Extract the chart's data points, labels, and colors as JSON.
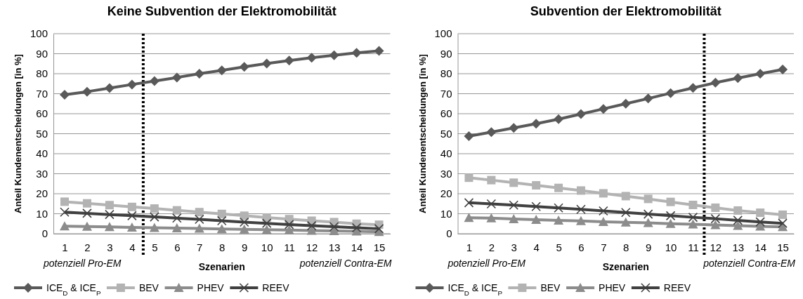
{
  "chart_data": [
    {
      "type": "line",
      "title": "Keine Subvention der Elektromobilität",
      "xlabel": "Szenarien",
      "ylabel": "Anteil Kundenentscheidungen [in %]",
      "x": [
        1,
        2,
        3,
        4,
        5,
        6,
        7,
        8,
        9,
        10,
        11,
        12,
        13,
        14,
        15
      ],
      "xlim": [
        0.5,
        15.5
      ],
      "xticks": [
        1,
        2,
        3,
        4,
        5,
        6,
        7,
        8,
        9,
        10,
        11,
        12,
        13,
        14,
        15
      ],
      "ylim": [
        0,
        100
      ],
      "yticks": [
        0,
        10,
        20,
        30,
        40,
        50,
        60,
        70,
        80,
        90,
        100
      ],
      "grid": "y",
      "legend": "bottom",
      "annotations": [
        "potenziell Pro-EM",
        "potenziell Contra-EM"
      ],
      "ref_lines": [
        {
          "axis": "x",
          "value": 4.5,
          "color": "#000000",
          "line_style": "dotted"
        }
      ],
      "series": [
        {
          "name": "ICE$_{D}$ & ICE$_{P}$",
          "color": "#595959",
          "marker": "diamond",
          "values": [
            69.5,
            71,
            72.8,
            74.6,
            76.3,
            78.1,
            80,
            81.7,
            83.4,
            85.1,
            86.6,
            88,
            89.2,
            90.4,
            91.4
          ]
        },
        {
          "name": "BEV",
          "color": "#b3b3b3",
          "marker": "square",
          "values": [
            16,
            15.2,
            14.3,
            13.4,
            12.6,
            11.7,
            10.8,
            9.9,
            9,
            8.1,
            7.3,
            6.5,
            5.8,
            5,
            4.5
          ]
        },
        {
          "name": "PHEV",
          "color": "#8c8c8c",
          "marker": "triangle",
          "values": [
            3.8,
            3.6,
            3.4,
            3.2,
            3,
            2.8,
            2.6,
            2.4,
            2.2,
            2,
            1.8,
            1.6,
            1.4,
            1.2,
            1
          ]
        },
        {
          "name": "REEV",
          "color": "#404040",
          "marker": "cross",
          "values": [
            10.8,
            10.2,
            9.6,
            9,
            8.4,
            7.8,
            7.2,
            6.5,
            5.8,
            5.2,
            4.6,
            4,
            3.5,
            3,
            2.5
          ]
        }
      ]
    },
    {
      "type": "line",
      "title": "Subvention der Elektromobilität",
      "xlabel": "Szenarien",
      "ylabel": "Anteil Kundenentscheidungen [in %]",
      "x": [
        1,
        2,
        3,
        4,
        5,
        6,
        7,
        8,
        9,
        10,
        11,
        12,
        13,
        14,
        15
      ],
      "xlim": [
        0.5,
        15.5
      ],
      "xticks": [
        1,
        2,
        3,
        4,
        5,
        6,
        7,
        8,
        9,
        10,
        11,
        12,
        13,
        14,
        15
      ],
      "ylim": [
        0,
        100
      ],
      "yticks": [
        0,
        10,
        20,
        30,
        40,
        50,
        60,
        70,
        80,
        90,
        100
      ],
      "grid": "y",
      "legend": "bottom",
      "annotations": [
        "potenziell Pro-EM",
        "potenziell Contra-EM"
      ],
      "ref_lines": [
        {
          "axis": "x",
          "value": 11.5,
          "color": "#000000",
          "line_style": "dotted"
        }
      ],
      "series": [
        {
          "name": "ICE$_{D}$ & ICE$_{P}$",
          "color": "#595959",
          "marker": "diamond",
          "values": [
            48.8,
            50.8,
            52.9,
            55,
            57.3,
            59.8,
            62.4,
            65,
            67.6,
            70.3,
            72.9,
            75.5,
            77.8,
            80,
            82.1
          ]
        },
        {
          "name": "BEV",
          "color": "#b3b3b3",
          "marker": "square",
          "values": [
            28,
            26.8,
            25.5,
            24.2,
            22.9,
            21.6,
            20.2,
            18.8,
            17.4,
            15.9,
            14.4,
            13,
            11.6,
            10.5,
            9.5
          ]
        },
        {
          "name": "PHEV",
          "color": "#8c8c8c",
          "marker": "triangle",
          "values": [
            8,
            7.8,
            7.4,
            7,
            6.7,
            6.4,
            6,
            5.7,
            5.4,
            5,
            4.7,
            4.4,
            4,
            3.7,
            3.4
          ]
        },
        {
          "name": "REEV",
          "color": "#404040",
          "marker": "cross",
          "values": [
            15.5,
            14.9,
            14.3,
            13.6,
            12.9,
            12.2,
            11.4,
            10.6,
            9.8,
            9,
            8.2,
            7.5,
            6.7,
            5.9,
            5.2
          ]
        }
      ]
    }
  ]
}
